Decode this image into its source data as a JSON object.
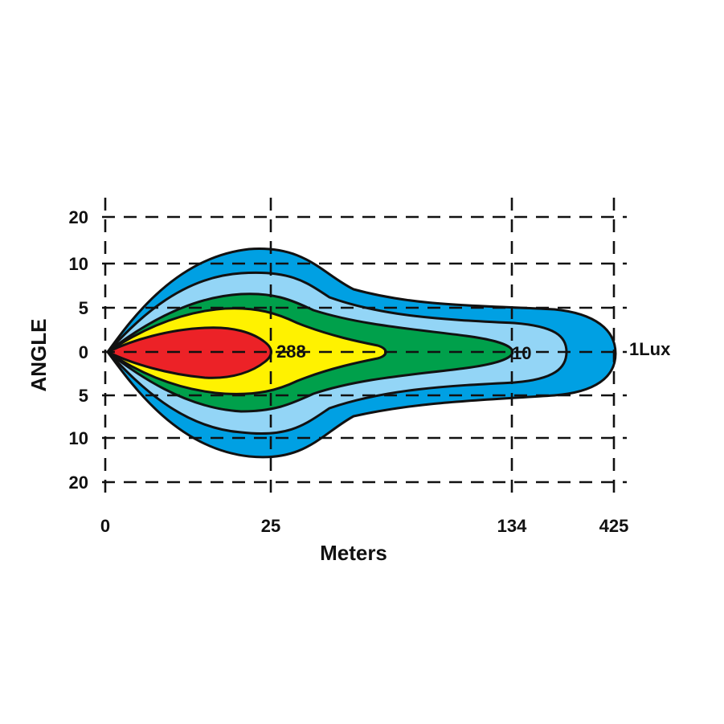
{
  "chart_data": {
    "type": "isolux",
    "xlabel": "Meters",
    "ylabel": "ANGLE",
    "x_ticks": [
      "0",
      "25",
      "134",
      "425"
    ],
    "y_ticks": [
      "20",
      "10",
      "5",
      "0",
      "5",
      "10",
      "20"
    ],
    "grid": true,
    "contour_labels": [
      "288",
      "10",
      "1Lux"
    ],
    "series": [
      {
        "name": "1Lux",
        "color": "#00a0e3",
        "reach_m": 425
      },
      {
        "name": "",
        "color": "#93d5f6",
        "reach_m": 300
      },
      {
        "name": "10",
        "color": "#00a04b",
        "reach_m": 134
      },
      {
        "name": "",
        "color": "#fff200",
        "reach_m": 75
      },
      {
        "name": "288",
        "color": "#ec2227",
        "reach_m": 25
      }
    ]
  }
}
